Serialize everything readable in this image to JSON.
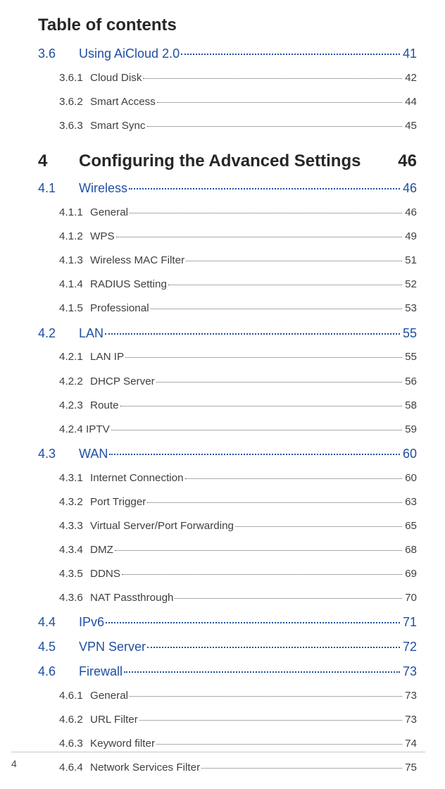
{
  "title": "Table of contents",
  "footer_page": "4",
  "colors": {
    "heading": "#262626",
    "body": "#3f3f3f",
    "link": "#1f4fa3",
    "background": "#ffffff"
  },
  "entries": [
    {
      "kind": "section",
      "num": "3.6",
      "label": "Using AiCloud 2.0",
      "page": "41"
    },
    {
      "kind": "subsection",
      "num": "3.6.1",
      "label": "Cloud Disk",
      "page": "42"
    },
    {
      "kind": "subsection",
      "num": "3.6.2",
      "label": "Smart Access",
      "page": "44"
    },
    {
      "kind": "subsection",
      "num": "3.6.3",
      "label": "Smart Sync",
      "page": "45"
    },
    {
      "kind": "chapter",
      "num": "4",
      "label": "Configuring the Advanced Settings",
      "page": "46"
    },
    {
      "kind": "section",
      "num": "4.1",
      "label": "Wireless",
      "page": "46"
    },
    {
      "kind": "subsection",
      "num": "4.1.1",
      "label": "General",
      "page": "46"
    },
    {
      "kind": "subsection",
      "num": "4.1.2",
      "label": "WPS",
      "page": "49"
    },
    {
      "kind": "subsection",
      "num": "4.1.3",
      "label": "Wireless MAC Filter",
      "page": "51"
    },
    {
      "kind": "subsection",
      "num": "4.1.4",
      "label": "RADIUS Setting",
      "page": "52"
    },
    {
      "kind": "subsection",
      "num": "4.1.5",
      "label": "Professional",
      "page": "53"
    },
    {
      "kind": "section",
      "num": "4.2",
      "label": "LAN",
      "page": "55"
    },
    {
      "kind": "subsection",
      "num": "4.2.1",
      "label": "LAN IP",
      "page": "55"
    },
    {
      "kind": "subsection",
      "num": "4.2.2",
      "label": "DHCP Server",
      "page": "56"
    },
    {
      "kind": "subsection",
      "num": "4.2.3",
      "label": "Route",
      "page": "58"
    },
    {
      "kind": "subsection",
      "num": "4.2.4",
      "label": "IPTV",
      "page": "59",
      "merged": true
    },
    {
      "kind": "section",
      "num": "4.3",
      "label": "WAN",
      "page": "60"
    },
    {
      "kind": "subsection",
      "num": "4.3.1",
      "label": "Internet Connection",
      "page": "60"
    },
    {
      "kind": "subsection",
      "num": "4.3.2",
      "label": "Port Trigger",
      "page": "63"
    },
    {
      "kind": "subsection",
      "num": "4.3.3",
      "label": "Virtual Server/Port Forwarding",
      "page": "65"
    },
    {
      "kind": "subsection",
      "num": "4.3.4",
      "label": "DMZ",
      "page": "68"
    },
    {
      "kind": "subsection",
      "num": "4.3.5",
      "label": "DDNS",
      "page": "69"
    },
    {
      "kind": "subsection",
      "num": "4.3.6",
      "label": "NAT Passthrough",
      "page": "70"
    },
    {
      "kind": "section",
      "num": "4.4",
      "label": "IPv6",
      "page": "71"
    },
    {
      "kind": "section",
      "num": "4.5",
      "label": "VPN Server",
      "page": "72"
    },
    {
      "kind": "section",
      "num": "4.6",
      "label": "Firewall",
      "page": "73"
    },
    {
      "kind": "subsection",
      "num": "4.6.1",
      "label": "General",
      "page": "73"
    },
    {
      "kind": "subsection",
      "num": "4.6.2",
      "label": "URL Filter",
      "page": "73"
    },
    {
      "kind": "subsection",
      "num": "4.6.3",
      "label": "Keyword filter",
      "page": "74"
    },
    {
      "kind": "subsection",
      "num": "4.6.4",
      "label": "Network Services Filter",
      "page": "75"
    }
  ]
}
